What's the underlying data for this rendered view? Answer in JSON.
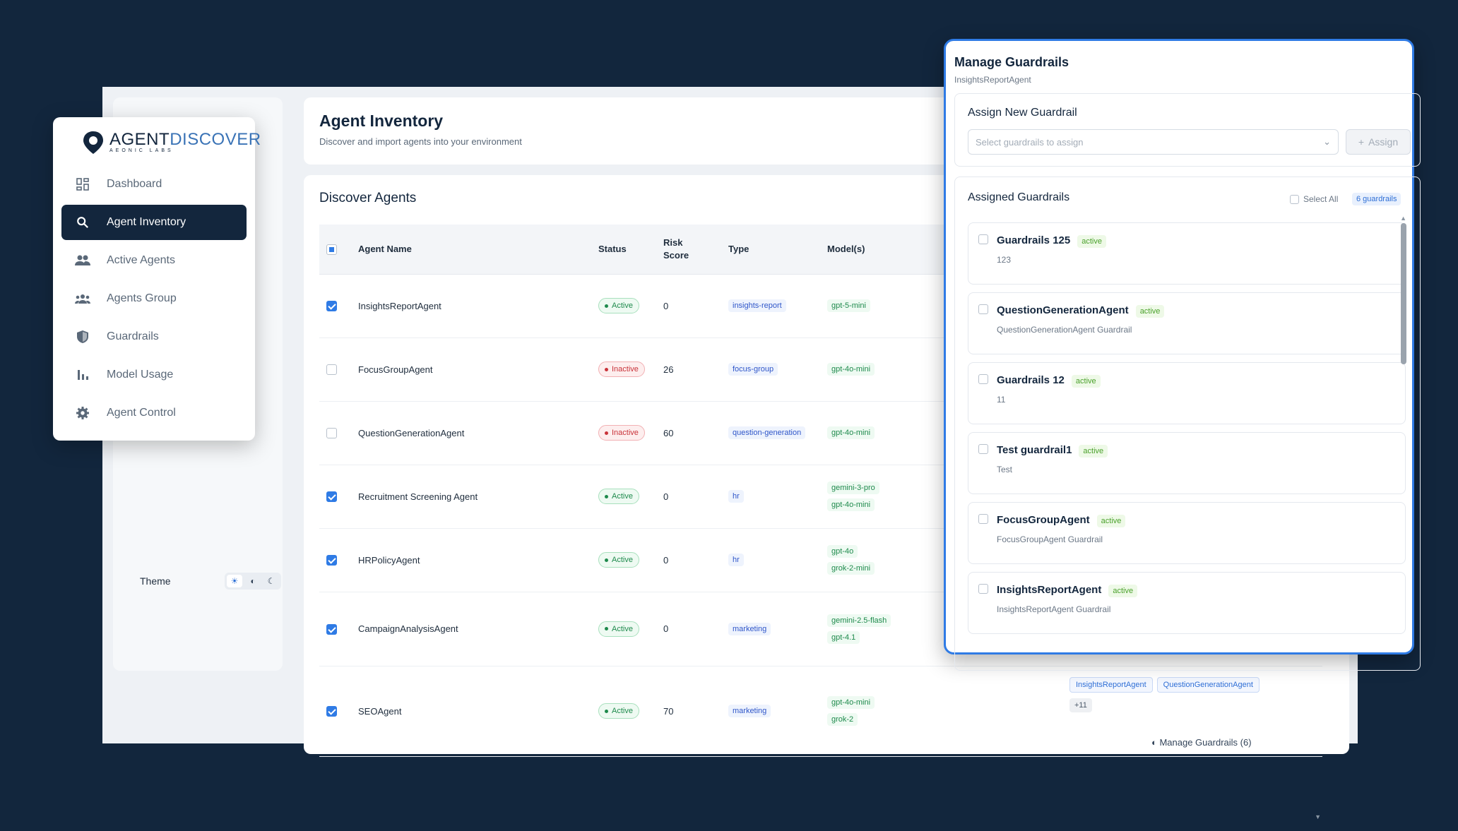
{
  "app": {
    "title": "Agent Inventory",
    "subtitle": "Discover and import agents into your environment",
    "discover_title": "Discover Agents",
    "theme_label": "Theme",
    "theme_icons": [
      "sun-icon",
      "contrast-icon",
      "moon-icon"
    ]
  },
  "logo": {
    "word_a": "AGENT",
    "word_b": "DISCOVER",
    "sub": "AEONIC LABS"
  },
  "nav": {
    "items": [
      {
        "label": "Dashboard",
        "icon": "dashboard-icon",
        "active": false
      },
      {
        "label": "Agent Inventory",
        "icon": "search-icon",
        "active": true
      },
      {
        "label": "Active Agents",
        "icon": "people-icon",
        "active": false
      },
      {
        "label": "Agents Group",
        "icon": "group-icon",
        "active": false
      },
      {
        "label": "Guardrails",
        "icon": "shield-icon",
        "active": false
      },
      {
        "label": "Model Usage",
        "icon": "bar-chart-icon",
        "active": false
      },
      {
        "label": "Agent Control",
        "icon": "gear-icon",
        "active": false
      }
    ]
  },
  "table": {
    "headers": [
      "Agent Name",
      "Status",
      "Risk Score",
      "Type",
      "Model(s)"
    ],
    "rows": [
      {
        "checked": true,
        "name": "InsightsReportAgent",
        "status": "Active",
        "risk": "0",
        "type": "insights-report",
        "models": [
          "gpt-5-mini"
        ]
      },
      {
        "checked": false,
        "name": "FocusGroupAgent",
        "status": "Inactive",
        "risk": "26",
        "type": "focus-group",
        "models": [
          "gpt-4o-mini"
        ]
      },
      {
        "checked": false,
        "name": "QuestionGenerationAgent",
        "status": "Inactive",
        "risk": "60",
        "type": "question-generation",
        "models": [
          "gpt-4o-mini"
        ]
      },
      {
        "checked": true,
        "name": "Recruitment Screening Agent",
        "status": "Active",
        "risk": "0",
        "type": "hr",
        "models": [
          "gemini-3-pro",
          "gpt-4o-mini"
        ]
      },
      {
        "checked": true,
        "name": "HRPolicyAgent",
        "status": "Active",
        "risk": "0",
        "type": "hr",
        "models": [
          "gpt-4o",
          "grok-2-mini"
        ]
      },
      {
        "checked": true,
        "name": "CampaignAnalysisAgent",
        "status": "Active",
        "risk": "0",
        "type": "marketing",
        "models": [
          "gemini-2.5-flash",
          "gpt-4.1"
        ]
      },
      {
        "checked": true,
        "name": "SEOAgent",
        "status": "Active",
        "risk": "70",
        "type": "marketing",
        "models": [
          "gpt-4o-mini",
          "grok-2"
        ]
      }
    ],
    "peek_manage": "Manage Guardrails (6)",
    "seo_guardrails": [
      "InsightsReportAgent",
      "QuestionGenerationAgent"
    ],
    "seo_more": "+11"
  },
  "modal": {
    "title": "Manage Guardrails",
    "agent": "InsightsReportAgent",
    "assign_title": "Assign New Guardrail",
    "assign_placeholder": "Select guardrails to assign",
    "assign_button": "Assign",
    "assigned_title": "Assigned Guardrails",
    "select_all": "Select All",
    "count": "6 guardrails",
    "guardrails": [
      {
        "name": "Guardrails 125",
        "badge": "active",
        "desc": "123"
      },
      {
        "name": "QuestionGenerationAgent",
        "badge": "active",
        "desc": "QuestionGenerationAgent Guardrail"
      },
      {
        "name": "Guardrails 12",
        "badge": "active",
        "desc": "11"
      },
      {
        "name": "Test guardrail1",
        "badge": "active",
        "desc": "Test"
      },
      {
        "name": "FocusGroupAgent",
        "badge": "active",
        "desc": "FocusGroupAgent Guardrail"
      },
      {
        "name": "InsightsReportAgent",
        "badge": "active",
        "desc": "InsightsReportAgent Guardrail"
      }
    ]
  },
  "colors": {
    "background": "#12263d",
    "accent": "#2f7be5",
    "nav_active": "#13263d"
  }
}
